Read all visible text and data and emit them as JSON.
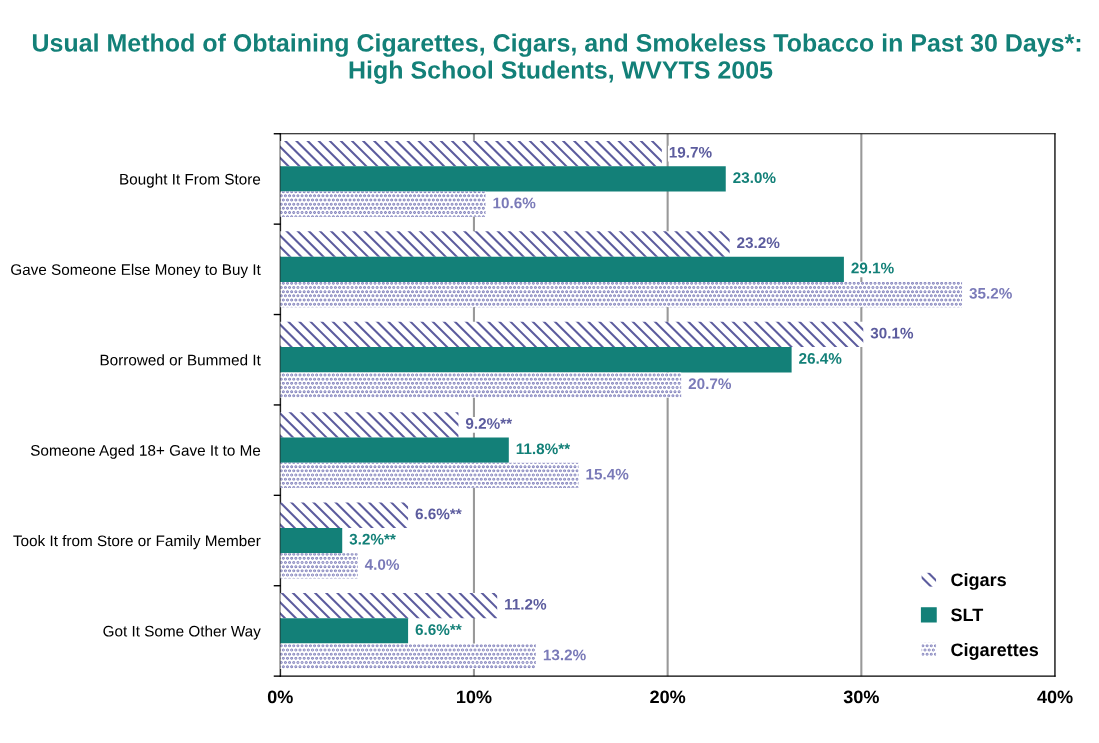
{
  "chart_data": {
    "type": "bar",
    "orientation": "horizontal",
    "title": "Usual Method of Obtaining Cigarettes, Cigars, and Smokeless Tobacco in Past 30 Days*:  High School Students, WVYTS 2005",
    "categories": [
      "Bought It From Store",
      "Gave Someone Else Money to Buy It",
      "Borrowed or Bummed It",
      "Someone Aged 18+ Gave It to Me",
      "Took It from Store or Family Member",
      "Got It Some Other Way"
    ],
    "series": [
      {
        "name": "Cigars",
        "color": "#5c5c9e",
        "values": [
          19.7,
          23.2,
          30.1,
          9.2,
          6.6,
          11.2
        ],
        "value_labels": [
          "19.7%",
          "23.2%",
          "30.1%",
          "9.2%**",
          "6.6%**",
          "11.2%"
        ]
      },
      {
        "name": "SLT",
        "color": "#138078",
        "values": [
          23.0,
          29.1,
          26.4,
          11.8,
          3.2,
          6.6
        ],
        "value_labels": [
          "23.0%",
          "29.1%",
          "26.4%",
          "11.8%**",
          "3.2%**",
          "6.6%**"
        ]
      },
      {
        "name": "Cigarettes",
        "color": "#7a7ab8",
        "values": [
          10.6,
          35.2,
          20.7,
          15.4,
          4.0,
          13.2
        ],
        "value_labels": [
          "10.6%",
          "35.2%",
          "20.7%",
          "15.4%",
          "4.0%",
          "13.2%"
        ]
      }
    ],
    "xlim": [
      0,
      40
    ],
    "xticks": [
      {
        "value": 0,
        "label": "0%"
      },
      {
        "value": 10,
        "label": "10%"
      },
      {
        "value": 20,
        "label": "20%"
      },
      {
        "value": 30,
        "label": "30%"
      },
      {
        "value": 40,
        "label": "40%"
      }
    ],
    "grid": "x",
    "legend": "bottom right"
  }
}
